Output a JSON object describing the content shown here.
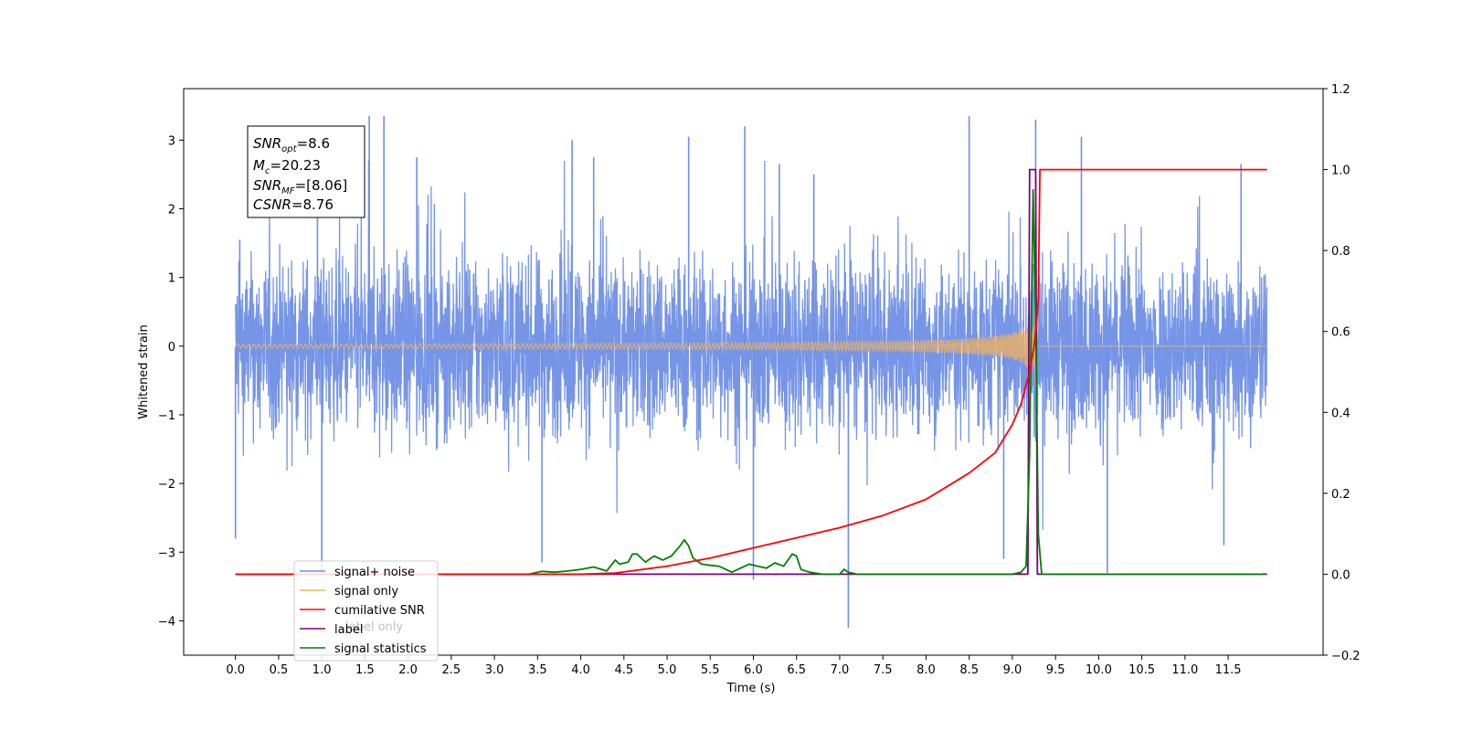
{
  "chart_data": {
    "type": "line",
    "xlabel": "Time (s)",
    "ylabel": "Whitened strain",
    "xlim": [
      -0.6,
      12.6
    ],
    "ylim": [
      -4.5,
      3.75
    ],
    "ylim_right": [
      -0.2,
      1.2
    ],
    "x_ticks": [
      "0.0",
      "0.5",
      "1.0",
      "1.5",
      "2.0",
      "2.5",
      "3.0",
      "3.5",
      "4.0",
      "4.5",
      "5.0",
      "5.5",
      "6.0",
      "6.5",
      "7.0",
      "7.5",
      "8.0",
      "8.5",
      "9.0",
      "9.5",
      "10.0",
      "10.5",
      "11.0",
      "11.5"
    ],
    "y_ticks_left": [
      "−4",
      "−3",
      "−2",
      "−1",
      "0",
      "1",
      "2",
      "3"
    ],
    "y_ticks_right": [
      "−0.2",
      "0.0",
      "0.2",
      "0.4",
      "0.6",
      "0.8",
      "1.0",
      "1.2"
    ],
    "colors": {
      "signal_noise": "#6f8fe6",
      "signal_only": "#f5b35a",
      "cumulative_snr": "#ff0000",
      "label": "#800080",
      "signal_statistics": "#008000"
    },
    "info_box": {
      "snr_opt": "8.6",
      "mc": "20.23",
      "snr_mf": "[8.06]",
      "csnr": "8.76"
    },
    "series": [
      {
        "name": "signal+ noise",
        "axis": "left",
        "description_envelope": "noise band roughly ±2 with spikes up to ±3.4",
        "spikes": [
          [
            0.0,
            -2.8
          ],
          [
            0.05,
            1.55
          ],
          [
            0.95,
            2.25
          ],
          [
            1.0,
            -3.3
          ],
          [
            1.55,
            3.35
          ],
          [
            1.72,
            3.35
          ],
          [
            2.1,
            2.75
          ],
          [
            3.55,
            -3.15
          ],
          [
            3.9,
            3.0
          ],
          [
            4.15,
            2.75
          ],
          [
            5.25,
            3.05
          ],
          [
            5.9,
            3.2
          ],
          [
            6.0,
            -3.4
          ],
          [
            6.3,
            2.65
          ],
          [
            6.7,
            2.5
          ],
          [
            7.1,
            -4.1
          ],
          [
            8.5,
            3.35
          ],
          [
            8.9,
            -3.1
          ],
          [
            9.27,
            3.3
          ],
          [
            9.8,
            3.05
          ],
          [
            10.1,
            -3.3
          ],
          [
            11.45,
            -2.9
          ],
          [
            11.65,
            2.65
          ]
        ]
      },
      {
        "name": "signal only",
        "axis": "left",
        "chirp": {
          "start": 0.0,
          "merger": 9.27,
          "end": 11.95,
          "max_amplitude": 0.65
        }
      },
      {
        "name": "cumilative SNR",
        "axis": "right",
        "x": [
          0.0,
          4.0,
          4.4,
          5.0,
          5.5,
          6.0,
          6.5,
          7.0,
          7.5,
          8.0,
          8.5,
          8.8,
          9.0,
          9.1,
          9.2,
          9.25,
          9.28,
          9.3,
          9.32,
          9.4,
          10.0,
          11.0,
          11.95
        ],
        "y": [
          0.0,
          0.0,
          0.003,
          0.02,
          0.04,
          0.065,
          0.09,
          0.115,
          0.145,
          0.185,
          0.25,
          0.3,
          0.37,
          0.42,
          0.5,
          0.56,
          0.62,
          0.68,
          1.0,
          1.0,
          1.0,
          1.0,
          1.0
        ]
      },
      {
        "name": "label",
        "axis": "right",
        "x": [
          0.0,
          9.18,
          9.2,
          9.27,
          9.29,
          9.31,
          11.95
        ],
        "y": [
          0.0,
          0.0,
          1.0,
          1.0,
          0.0,
          0.0,
          0.0
        ]
      },
      {
        "name": "signal statistics",
        "axis": "right",
        "x": [
          0.0,
          3.4,
          3.55,
          3.7,
          3.85,
          4.0,
          4.15,
          4.3,
          4.4,
          4.45,
          4.55,
          4.6,
          4.65,
          4.75,
          4.85,
          4.95,
          5.05,
          5.15,
          5.2,
          5.25,
          5.3,
          5.4,
          5.5,
          5.6,
          5.75,
          5.85,
          5.95,
          6.05,
          6.15,
          6.25,
          6.35,
          6.45,
          6.5,
          6.55,
          6.65,
          6.8,
          7.0,
          7.05,
          7.1,
          7.2,
          9.0,
          9.1,
          9.16,
          9.2,
          9.24,
          9.27,
          9.3,
          9.34,
          9.4,
          11.9
        ],
        "y": [
          0.0,
          0.0,
          0.007,
          0.005,
          0.008,
          0.012,
          0.018,
          0.008,
          0.035,
          0.025,
          0.03,
          0.05,
          0.05,
          0.03,
          0.045,
          0.035,
          0.045,
          0.07,
          0.085,
          0.07,
          0.04,
          0.025,
          0.022,
          0.02,
          0.005,
          0.015,
          0.025,
          0.02,
          0.015,
          0.028,
          0.02,
          0.05,
          0.045,
          0.012,
          0.005,
          0.0,
          0.0,
          0.012,
          0.005,
          0.0,
          0.0,
          0.005,
          0.02,
          0.3,
          0.95,
          0.65,
          0.1,
          0.0,
          0.0,
          0.0
        ]
      }
    ],
    "legend": {
      "placement": "lower-left",
      "entries": [
        "signal+ noise",
        "signal only",
        "cumilative SNR",
        "label",
        "signal statistics"
      ],
      "hidden_text": "label only"
    }
  }
}
